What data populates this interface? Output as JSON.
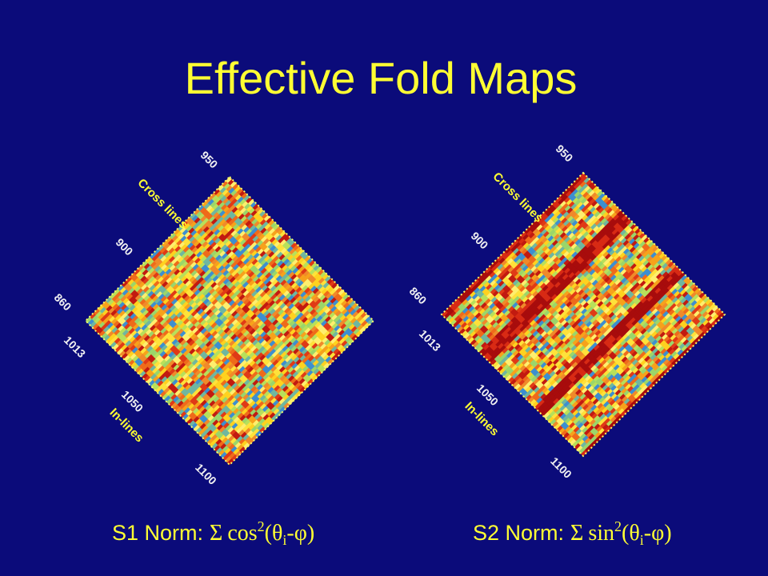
{
  "title": "Effective Fold Maps",
  "panels": [
    {
      "cross_label": "Cross lines",
      "inline_label": "In-lines",
      "cross_ticks": [
        "950",
        "900",
        "860"
      ],
      "inline_ticks": [
        "1013",
        "1050",
        "1100"
      ],
      "caption": {
        "label": "S1 Norm:",
        "sigma": "Σ",
        "func": "cos",
        "power": "2",
        "open": "(θ",
        "sub": "i",
        "close": "-φ)"
      }
    },
    {
      "cross_label": "Cross lines",
      "inline_label": "In-lines",
      "cross_ticks": [
        "950",
        "900",
        "860"
      ],
      "inline_ticks": [
        "1013",
        "1050",
        "1100"
      ],
      "caption": {
        "label": "S2 Norm:",
        "sigma": "Σ",
        "func": "sin",
        "power": "2",
        "open": "(θ",
        "sub": "i",
        "close": "-φ)"
      }
    }
  ]
}
